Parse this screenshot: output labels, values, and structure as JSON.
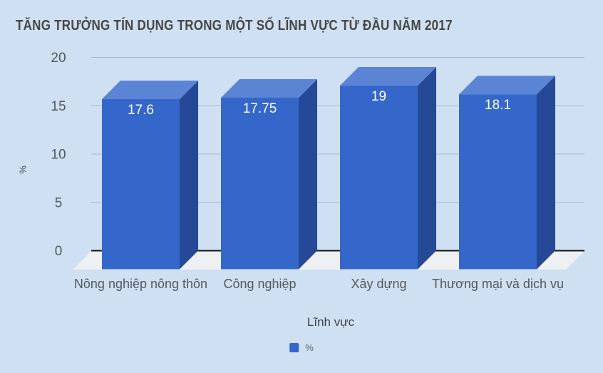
{
  "title": "TĂNG TRƯỞNG TÍN DỤNG TRONG MỘT SỐ LĨNH VỰC TỪ ĐẦU NĂM 2017",
  "chart_data": {
    "type": "bar",
    "style": "3d-column",
    "title": "TĂNG TRƯỞNG TÍN DỤNG TRONG MỘT SỐ LĨNH VỰC TỪ ĐẦU NĂM 2017",
    "categories": [
      "Nông nghiệp nông thôn",
      "Công nghiệp",
      "Xây dựng",
      "Thương mại và dịch vụ"
    ],
    "series": [
      {
        "name": "%",
        "values": [
          17.6,
          17.75,
          19,
          18.1
        ]
      }
    ],
    "data_labels": [
      "17.6",
      "17.75",
      "19",
      "18.1"
    ],
    "xlabel": "Lĩnh vực",
    "ylabel": "%",
    "y_ticks": [
      0,
      5,
      10,
      15,
      20
    ],
    "ylim": [
      0,
      20
    ],
    "grid": true,
    "legend": {
      "position": "bottom",
      "entries": [
        {
          "label": "%",
          "color": "#3366cc"
        }
      ]
    },
    "colors": {
      "background": "#cee0f1",
      "bar_front": "#3467c9",
      "bar_top": "#5c84d5",
      "bar_side": "#254897",
      "floor": "#eef0f3",
      "gridline": "#a9b8c6",
      "axis_line": "#141414",
      "title": "#474747",
      "tick_label": "#56595e",
      "category_label": "#56595e",
      "data_label": "#ffffff",
      "legend_label": "#606468"
    }
  }
}
